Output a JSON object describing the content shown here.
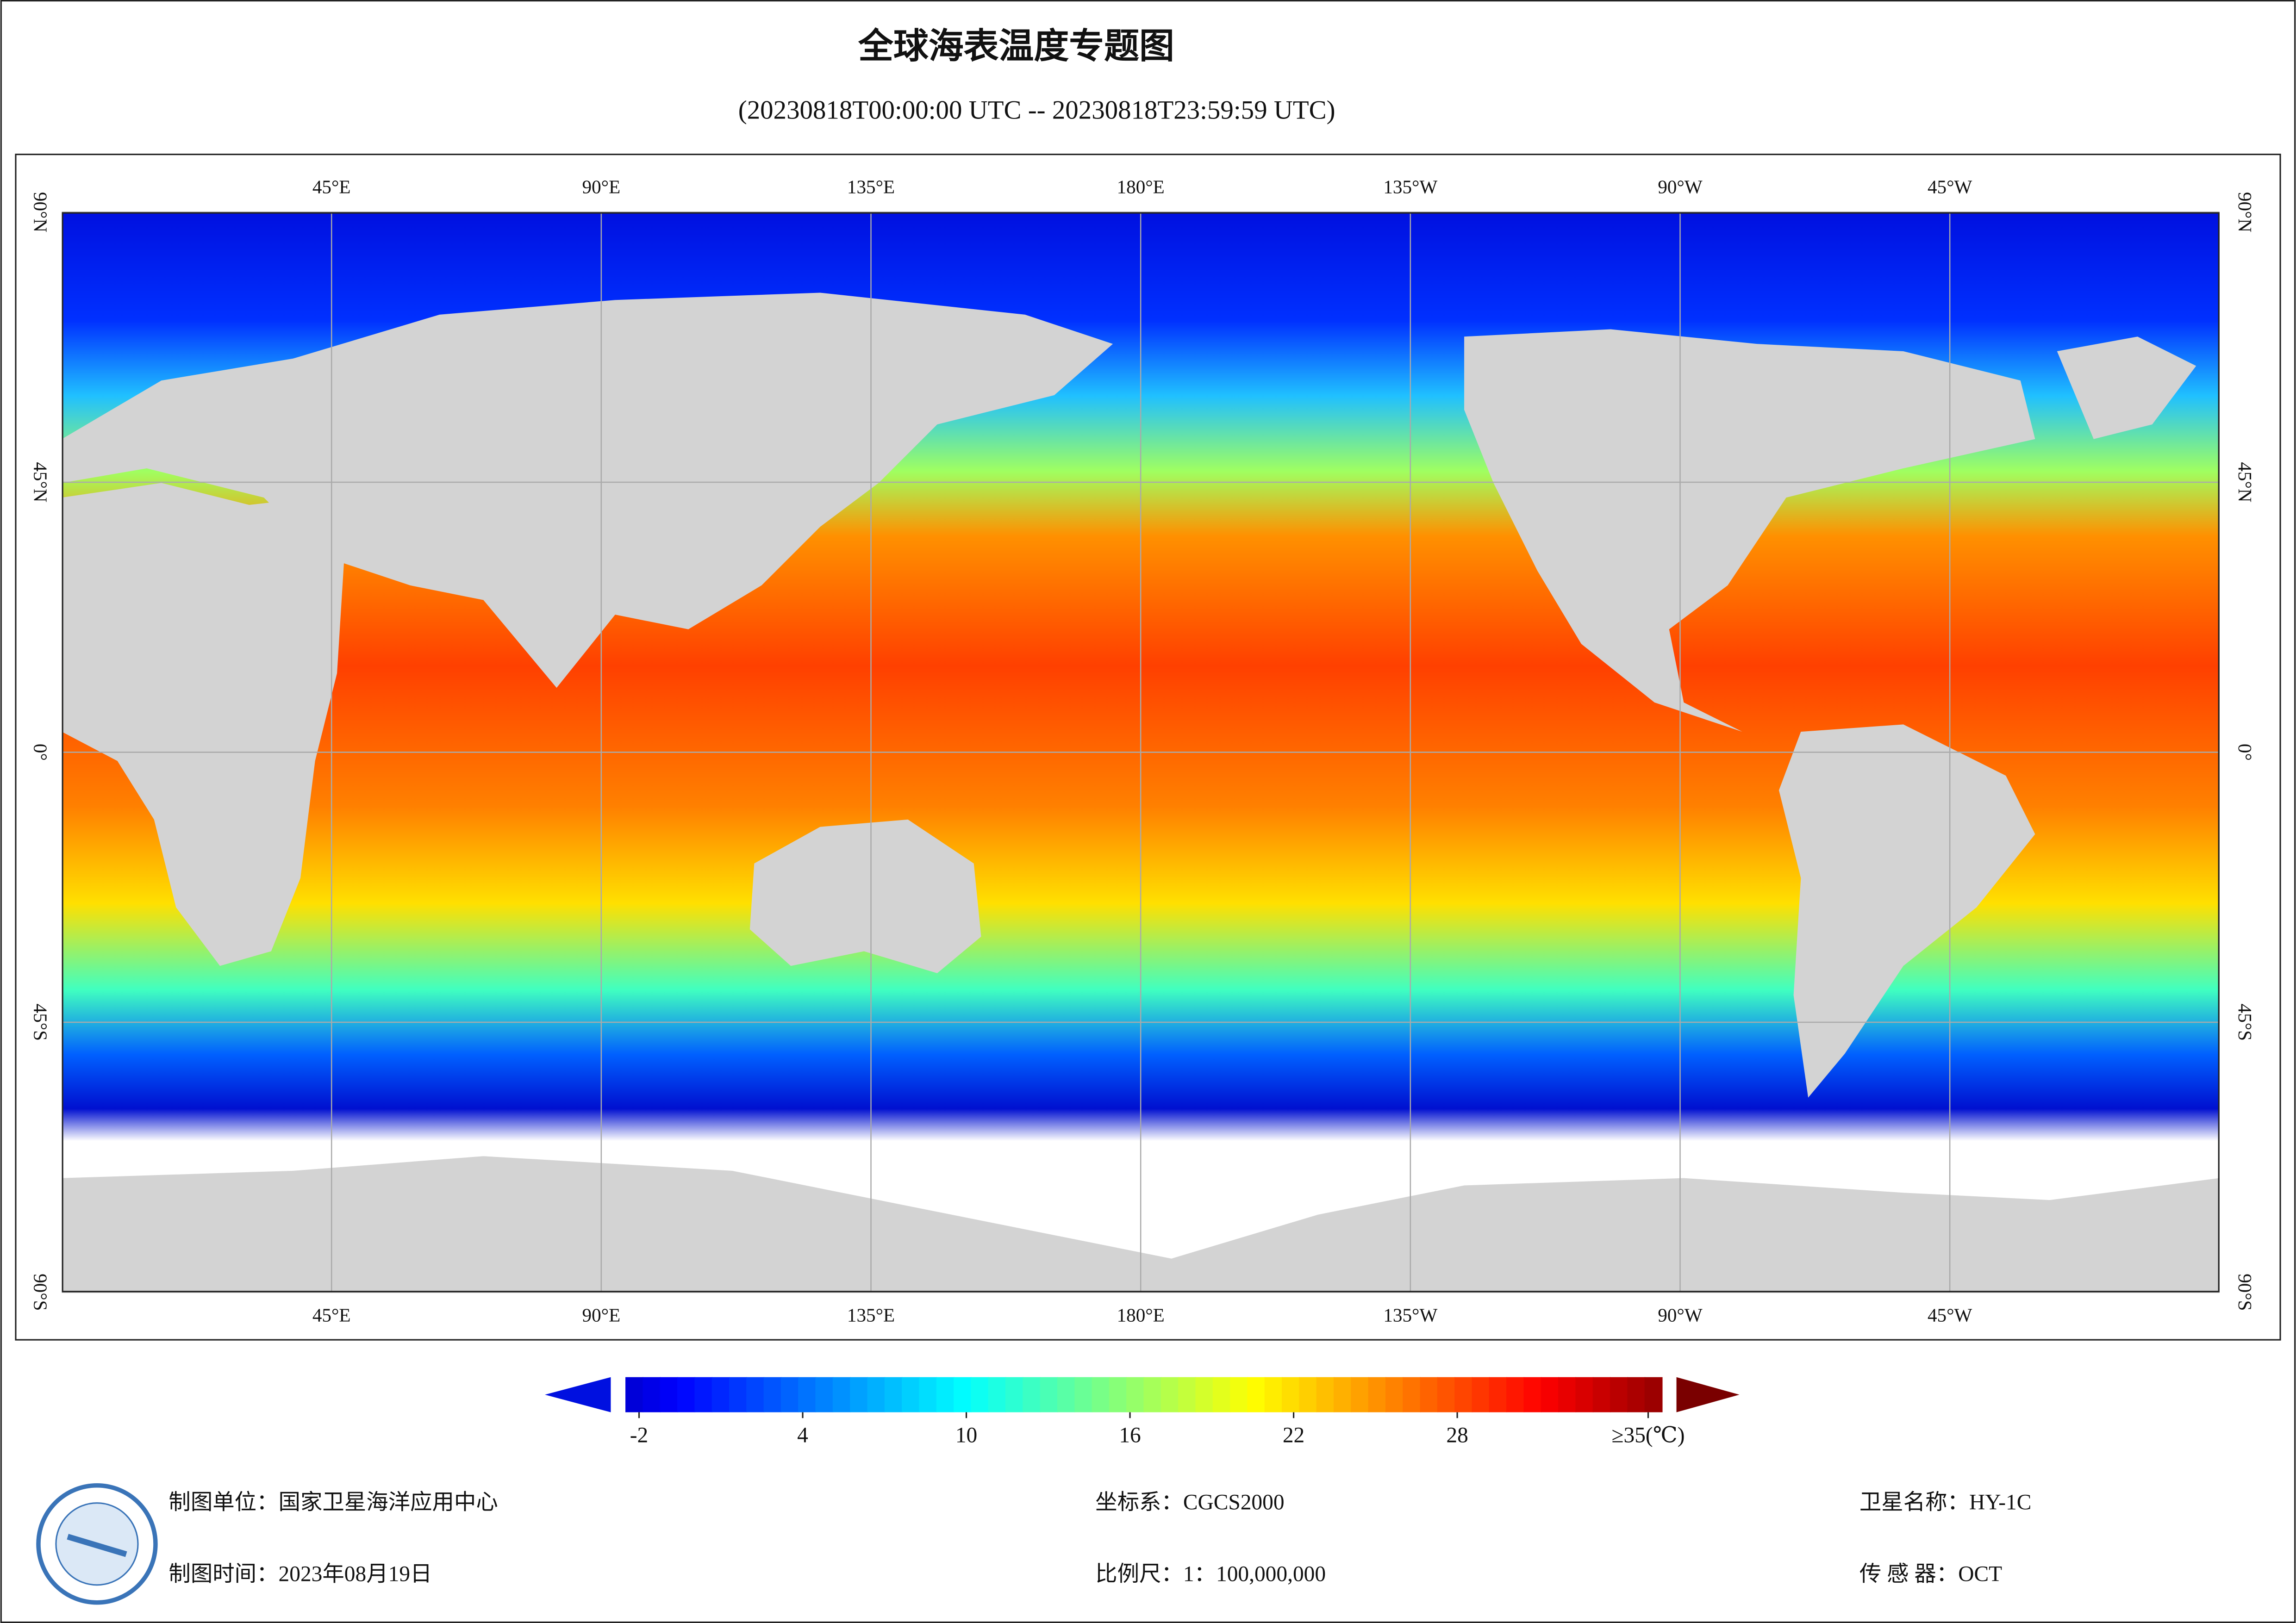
{
  "title": "全球海表温度专题图",
  "subtitle": "(20230818T00:00:00 UTC -- 20230818T23:59:59 UTC)",
  "map": {
    "lon_range": [
      0,
      360
    ],
    "lat_range": [
      90,
      -90
    ],
    "lon_ticks": [
      {
        "value": 45,
        "label": "45°E"
      },
      {
        "value": 90,
        "label": "90°E"
      },
      {
        "value": 135,
        "label": "135°E"
      },
      {
        "value": 180,
        "label": "180°E"
      },
      {
        "value": -135,
        "label": "135°W"
      },
      {
        "value": -90,
        "label": "90°W"
      },
      {
        "value": -45,
        "label": "45°W"
      }
    ],
    "lat_ticks": [
      {
        "value": 90,
        "label": "90°N"
      },
      {
        "value": 45,
        "label": "45°N"
      },
      {
        "value": 0,
        "label": "0°"
      },
      {
        "value": -45,
        "label": "45°S"
      },
      {
        "value": -90,
        "label": "90°S"
      }
    ]
  },
  "colorbar": {
    "range": [
      -2.5,
      35.5
    ],
    "ticks": [
      -2,
      4,
      10,
      16,
      22,
      28,
      {
        "value": 35,
        "label": "≥35(℃)"
      }
    ]
  },
  "info": {
    "unit": "制图单位：国家卫星海洋应用中心",
    "time": "制图时间：2023年08月19日",
    "crs": "坐标系：CGCS2000",
    "scale": "比例尺：1：100,000,000",
    "satellite": "卫星名称：HY-1C",
    "sensor": "传 感 器：OCT"
  }
}
